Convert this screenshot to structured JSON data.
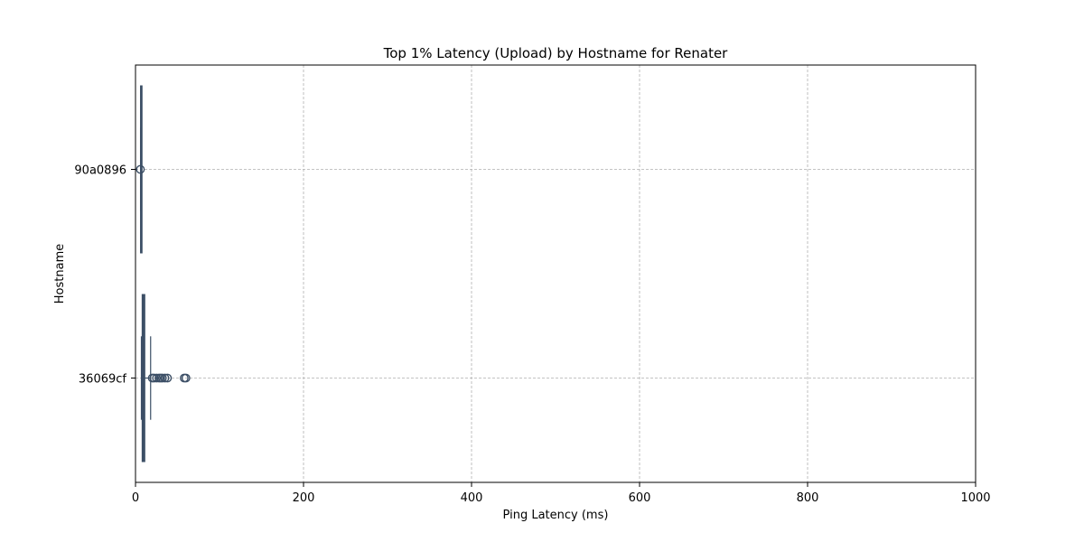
{
  "chart_data": {
    "type": "boxplot",
    "orientation": "horizontal",
    "title": "Top 1% Latency (Upload) by Hostname for Renater",
    "xlabel": "Ping Latency (ms)",
    "ylabel": "Hostname",
    "xlim": [
      0,
      1000
    ],
    "xticks": [
      0,
      200,
      400,
      600,
      800,
      1000
    ],
    "grid": true,
    "box_color": "#3c4f66",
    "categories": [
      "90a0896",
      "36069cf"
    ],
    "series": [
      {
        "category": "90a0896",
        "whisker_low": 6.0,
        "q1": 6.1,
        "median": 6.2,
        "q3": 6.3,
        "whisker_high": 6.5,
        "outliers": [
          5.8
        ]
      },
      {
        "category": "36069cf",
        "whisker_low": 7.0,
        "q1": 8.0,
        "median": 9.0,
        "q3": 11.0,
        "whisker_high": 18.0,
        "outliers": [
          20,
          22,
          25,
          28,
          30,
          32,
          35,
          38,
          58,
          60
        ]
      }
    ]
  }
}
